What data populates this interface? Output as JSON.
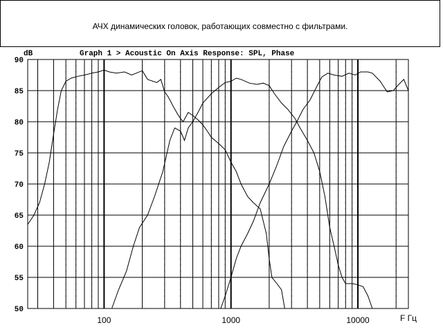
{
  "caption": "АЧХ динамических головок, работающих совместно с фильтрами.",
  "chart_data": {
    "type": "line",
    "title": "Graph 1 > Acoustic On Axis Response: SPL, Phase",
    "xlabel": "F Гц",
    "ylabel": "dB",
    "x_scale": "log",
    "xlim": [
      25,
      25000
    ],
    "ylim": [
      50,
      90
    ],
    "y_ticks": [
      90,
      85,
      80,
      75,
      70,
      65,
      60,
      55,
      50
    ],
    "x_tick_labels": [
      {
        "value": 100,
        "label": "100"
      },
      {
        "value": 1000,
        "label": "1000"
      },
      {
        "value": 10000,
        "label": "10000"
      }
    ],
    "grid": true,
    "series": [
      {
        "points": [
          [
            25,
            63.5
          ],
          [
            28,
            65
          ],
          [
            31,
            67
          ],
          [
            34,
            70
          ],
          [
            37,
            73.5
          ],
          [
            40,
            78
          ],
          [
            43,
            82
          ],
          [
            46,
            85
          ],
          [
            50,
            86.5
          ],
          [
            55,
            87
          ],
          [
            62,
            87.3
          ],
          [
            70,
            87.5
          ],
          [
            80,
            87.8
          ],
          [
            90,
            88
          ],
          [
            100,
            88.3
          ],
          [
            110,
            88
          ],
          [
            125,
            87.8
          ],
          [
            145,
            88
          ],
          [
            165,
            87.5
          ],
          [
            200,
            88.2
          ],
          [
            220,
            86.8
          ],
          [
            260,
            86.3
          ],
          [
            280,
            86.8
          ],
          [
            300,
            84.8
          ],
          [
            320,
            84
          ],
          [
            350,
            82.5
          ],
          [
            380,
            81.2
          ],
          [
            400,
            80.5
          ],
          [
            420,
            80
          ],
          [
            460,
            81.5
          ],
          [
            500,
            81
          ],
          [
            550,
            80.3
          ],
          [
            600,
            79.5
          ],
          [
            650,
            78.5
          ],
          [
            700,
            77.5
          ],
          [
            800,
            76.5
          ],
          [
            900,
            75.5
          ],
          [
            1000,
            73.5
          ],
          [
            1100,
            72
          ],
          [
            1200,
            70
          ],
          [
            1350,
            68
          ],
          [
            1500,
            67
          ],
          [
            1700,
            66
          ],
          [
            1900,
            62
          ],
          [
            2000,
            58
          ],
          [
            2100,
            55
          ],
          [
            2300,
            54
          ],
          [
            2500,
            53
          ],
          [
            2650,
            50
          ]
        ]
      },
      {
        "points": [
          [
            115,
            50
          ],
          [
            130,
            53
          ],
          [
            150,
            56
          ],
          [
            170,
            60
          ],
          [
            190,
            63
          ],
          [
            220,
            65
          ],
          [
            250,
            68
          ],
          [
            290,
            72
          ],
          [
            330,
            77
          ],
          [
            360,
            79
          ],
          [
            400,
            78.5
          ],
          [
            430,
            77
          ],
          [
            460,
            79
          ],
          [
            500,
            80
          ],
          [
            550,
            81.5
          ],
          [
            600,
            83
          ],
          [
            700,
            84.5
          ],
          [
            800,
            85.5
          ],
          [
            900,
            86.3
          ],
          [
            1000,
            86.5
          ],
          [
            1100,
            87
          ],
          [
            1200,
            86.8
          ],
          [
            1400,
            86.2
          ],
          [
            1600,
            86
          ],
          [
            1800,
            86.2
          ],
          [
            2000,
            85.8
          ],
          [
            2200,
            84.5
          ],
          [
            2500,
            83
          ],
          [
            2800,
            82
          ],
          [
            3200,
            80.5
          ],
          [
            3500,
            79
          ],
          [
            4000,
            77
          ],
          [
            4500,
            75
          ],
          [
            5000,
            72
          ],
          [
            5500,
            68
          ],
          [
            6000,
            63
          ],
          [
            6500,
            60
          ],
          [
            7000,
            57
          ],
          [
            7500,
            55
          ],
          [
            8000,
            54
          ],
          [
            9000,
            54
          ],
          [
            10000,
            53.8
          ],
          [
            11000,
            53.5
          ],
          [
            12000,
            52
          ],
          [
            13000,
            50
          ]
        ]
      },
      {
        "points": [
          [
            830,
            50
          ],
          [
            900,
            52
          ],
          [
            1000,
            55
          ],
          [
            1100,
            58
          ],
          [
            1200,
            60
          ],
          [
            1350,
            62
          ],
          [
            1500,
            64
          ],
          [
            1700,
            67
          ],
          [
            2000,
            70
          ],
          [
            2300,
            73
          ],
          [
            2600,
            76
          ],
          [
            3000,
            78.5
          ],
          [
            3300,
            80
          ],
          [
            3700,
            82
          ],
          [
            4200,
            83.5
          ],
          [
            4700,
            85.5
          ],
          [
            5200,
            87.2
          ],
          [
            5800,
            87.8
          ],
          [
            6500,
            87.5
          ],
          [
            7500,
            87.3
          ],
          [
            8500,
            87.8
          ],
          [
            9500,
            87.5
          ],
          [
            10500,
            88
          ],
          [
            12000,
            88
          ],
          [
            13000,
            87.8
          ],
          [
            15000,
            86.5
          ],
          [
            17000,
            84.8
          ],
          [
            19000,
            85
          ],
          [
            21000,
            86
          ],
          [
            23000,
            86.8
          ],
          [
            25000,
            85
          ]
        ]
      }
    ]
  }
}
